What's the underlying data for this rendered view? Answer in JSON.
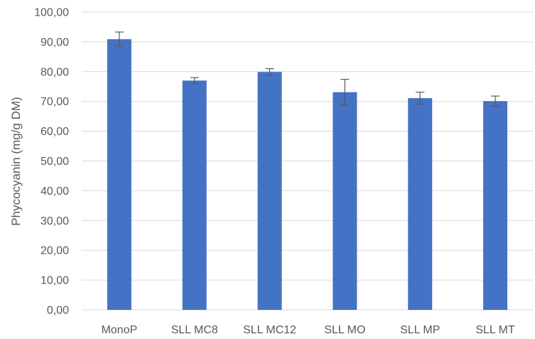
{
  "chart_data": {
    "type": "bar",
    "title": "",
    "xlabel": "",
    "ylabel": "Phycocyanin (mg/g DM)",
    "categories": [
      "MonoP",
      "SLL MC8",
      "SLL MC12",
      "SLL MO",
      "SLL MP",
      "SLL MT"
    ],
    "values": [
      90.9,
      77.0,
      79.9,
      73.1,
      71.1,
      70.1
    ],
    "error": [
      2.4,
      1.0,
      1.1,
      4.3,
      2.0,
      1.7
    ],
    "ylim": [
      0,
      100
    ],
    "yticks": [
      "0,00",
      "10,00",
      "20,00",
      "30,00",
      "40,00",
      "50,00",
      "60,00",
      "70,00",
      "80,00",
      "90,00",
      "100,00"
    ],
    "grid": true,
    "legend": "none",
    "bar_color": "#4472c4",
    "errorbar_color": "#595959",
    "grid_color": "#d9d9d9"
  }
}
